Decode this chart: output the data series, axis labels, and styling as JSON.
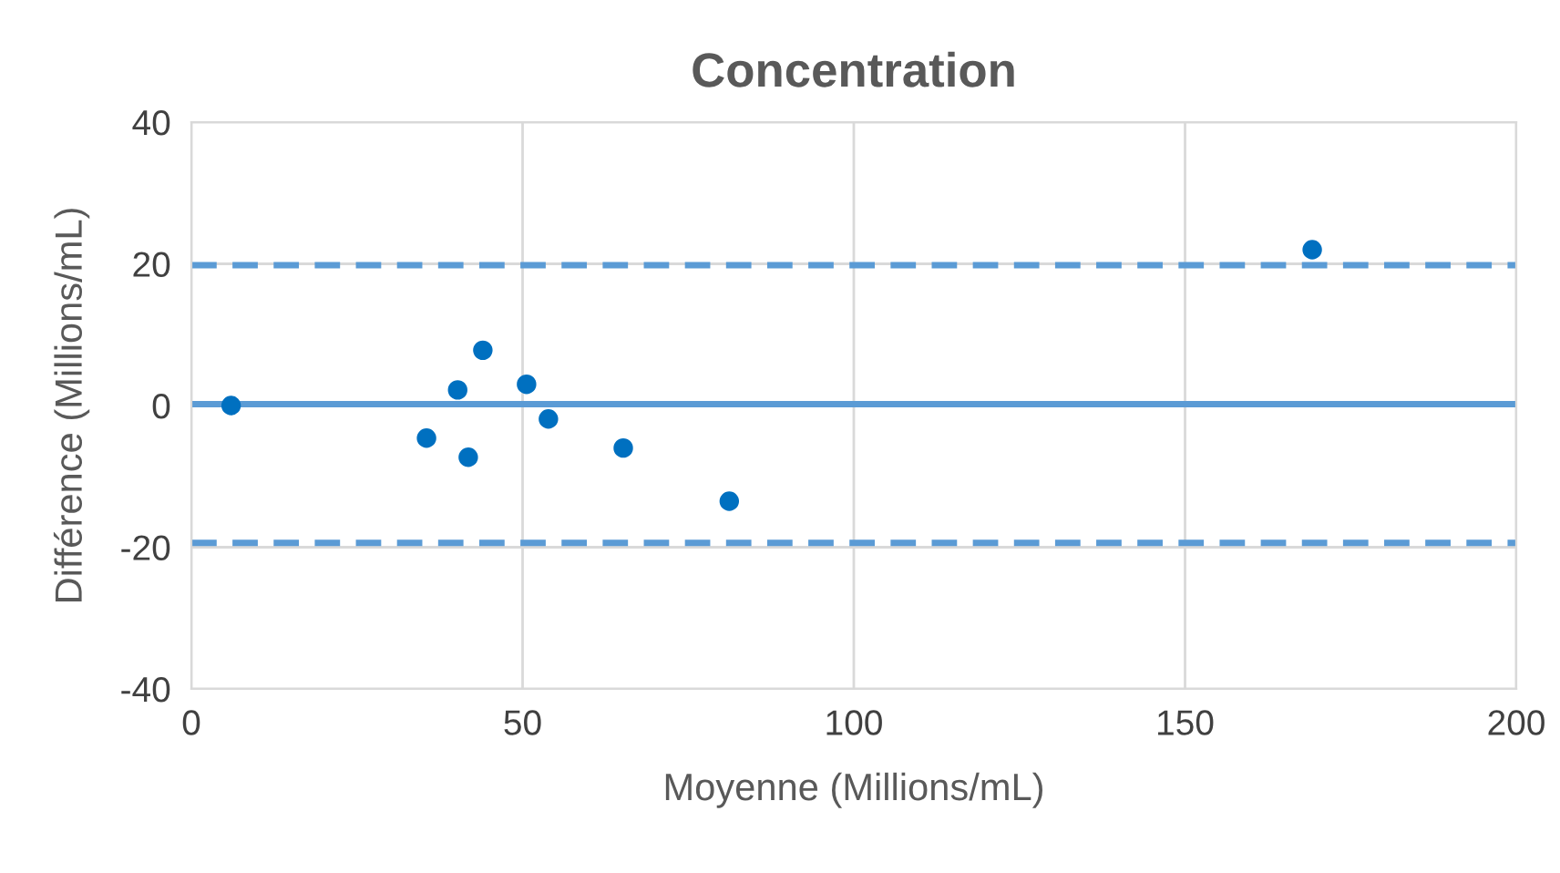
{
  "chart_data": {
    "type": "scatter",
    "title": "Concentration",
    "xlabel": "Moyenne (Millions/mL)",
    "ylabel": "Différence (Millions/mL)",
    "x": [
      6,
      35.5,
      40.2,
      41.8,
      44,
      50.6,
      53.9,
      65.2,
      81.2,
      169.2
    ],
    "series": [
      {
        "color": "#0070c0",
        "values": [
          0,
          -4.6,
          2.2,
          -7.3,
          7.8,
          3.0,
          -1.9,
          -6.0,
          -13.5,
          22.0
        ]
      }
    ],
    "marker": "circle",
    "xlim": [
      0,
      200
    ],
    "xticks": [
      0,
      50,
      100,
      150,
      200
    ],
    "ylim": [
      -40,
      40
    ],
    "yticks": [
      -40,
      -20,
      0,
      20,
      40
    ],
    "grid": true,
    "legend": false,
    "ref_lines": [
      {
        "axis": "y",
        "value": 19.8,
        "color": "#5b9bd5",
        "line_style": "dashed"
      },
      {
        "axis": "y",
        "value": 0.2,
        "color": "#5b9bd5",
        "line_style": "solid"
      },
      {
        "axis": "y",
        "value": -19.4,
        "color": "#5b9bd5",
        "line_style": "dashed"
      }
    ]
  }
}
